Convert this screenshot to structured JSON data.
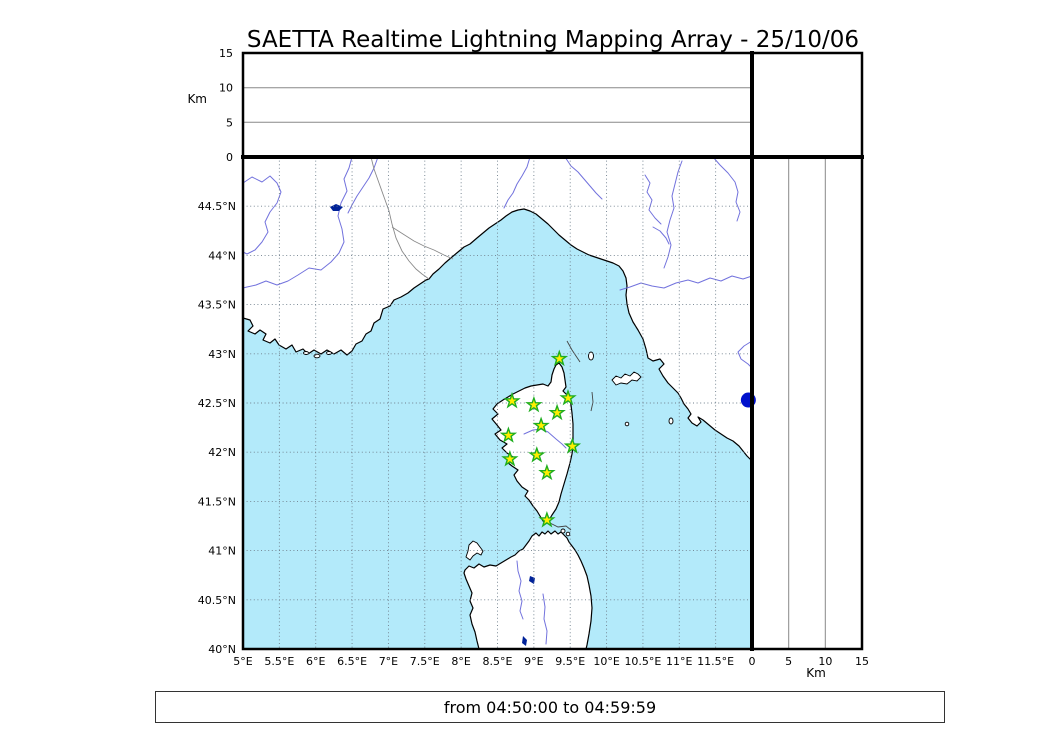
{
  "title": "SAETTA Realtime Lightning Mapping Array - 25/10/06",
  "footer": {
    "time_range": "from 04:50:00 to 04:59:59"
  },
  "altitude_panel": {
    "axis_label": "Km",
    "range_km": [
      0,
      15
    ],
    "ticks": [
      {
        "label": "0",
        "km": 0
      },
      {
        "label": "5",
        "km": 5
      },
      {
        "label": "10",
        "km": 10
      },
      {
        "label": "15",
        "km": 15
      }
    ]
  },
  "side_panel": {
    "axis_label": "Km",
    "range_km": [
      0,
      15
    ],
    "ticks": [
      {
        "label": "0",
        "km": 0
      },
      {
        "label": "5",
        "km": 5
      },
      {
        "label": "10",
        "km": 10
      },
      {
        "label": "15",
        "km": 15
      }
    ]
  },
  "map_panel": {
    "lon_range": [
      5,
      12
    ],
    "lat_range": [
      40,
      45
    ],
    "lat_ticks": [
      {
        "label": "44.5°N",
        "deg": 44.5
      },
      {
        "label": "44°N",
        "deg": 44.0
      },
      {
        "label": "43.5°N",
        "deg": 43.5
      },
      {
        "label": "43°N",
        "deg": 43.0
      },
      {
        "label": "42.5°N",
        "deg": 42.5
      },
      {
        "label": "42°N",
        "deg": 42.0
      },
      {
        "label": "41.5°N",
        "deg": 41.5
      },
      {
        "label": "41°N",
        "deg": 41.0
      },
      {
        "label": "40.5°N",
        "deg": 40.5
      },
      {
        "label": "40°N",
        "deg": 40.0
      }
    ],
    "lon_ticks": [
      {
        "label": "5°E",
        "deg": 5.0
      },
      {
        "label": "5.5°E",
        "deg": 5.5
      },
      {
        "label": "6°E",
        "deg": 6.0
      },
      {
        "label": "6.5°E",
        "deg": 6.5
      },
      {
        "label": "7°E",
        "deg": 7.0
      },
      {
        "label": "7.5°E",
        "deg": 7.5
      },
      {
        "label": "8°E",
        "deg": 8.0
      },
      {
        "label": "8.5°E",
        "deg": 8.5
      },
      {
        "label": "9°E",
        "deg": 9.0
      },
      {
        "label": "9.5°E",
        "deg": 9.5
      },
      {
        "label": "10°E",
        "deg": 10.0
      },
      {
        "label": "10.5°E",
        "deg": 10.5
      },
      {
        "label": "11°E",
        "deg": 11.0
      },
      {
        "label": "11.5°E",
        "deg": 11.5
      }
    ]
  },
  "stations": [
    {
      "lon": 9.35,
      "lat": 42.95
    },
    {
      "lon": 8.7,
      "lat": 42.52
    },
    {
      "lon": 9.0,
      "lat": 42.48
    },
    {
      "lon": 9.47,
      "lat": 42.55
    },
    {
      "lon": 9.32,
      "lat": 42.4
    },
    {
      "lon": 9.1,
      "lat": 42.27
    },
    {
      "lon": 8.65,
      "lat": 42.17
    },
    {
      "lon": 9.53,
      "lat": 42.06
    },
    {
      "lon": 8.67,
      "lat": 41.93
    },
    {
      "lon": 9.04,
      "lat": 41.97
    },
    {
      "lon": 9.18,
      "lat": 41.79
    },
    {
      "lon": 9.18,
      "lat": 41.31
    }
  ],
  "event_marker": {
    "lon": 11.95,
    "lat": 42.53
  },
  "colors": {
    "sea": "#b3eafa",
    "land": "#ffffff",
    "coast": "#000000",
    "river": "#7272dd",
    "lake": "#002299",
    "grid": "#6f7f8c",
    "station_fill": "#ffee00",
    "station_stroke": "#1fae1f",
    "event": "#0011cc"
  }
}
